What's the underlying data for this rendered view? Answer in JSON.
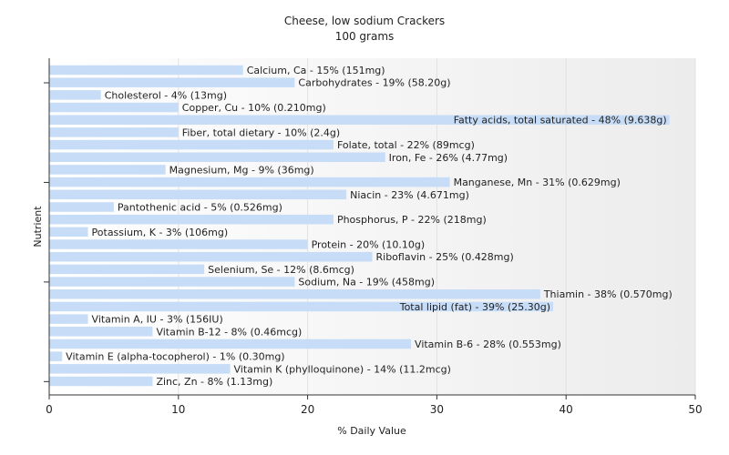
{
  "chart_data": {
    "type": "bar",
    "orientation": "horizontal",
    "title": "Cheese, low sodium Crackers",
    "subtitle": "100 grams",
    "xlabel": "% Daily Value",
    "ylabel": "Nutrient",
    "xlim": [
      0,
      50
    ],
    "xticks": [
      "0",
      "10",
      "20",
      "30",
      "40",
      "50"
    ],
    "grid": true,
    "bar_color": "#c6dcf7",
    "bars": [
      {
        "value": 15,
        "label": "Calcium, Ca - 15% (151mg)"
      },
      {
        "value": 19,
        "label": "Carbohydrates - 19% (58.20g)"
      },
      {
        "value": 4,
        "label": "Cholesterol - 4% (13mg)"
      },
      {
        "value": 10,
        "label": "Copper, Cu - 10% (0.210mg)"
      },
      {
        "value": 48,
        "label": "Fatty acids, total saturated - 48% (9.638g)"
      },
      {
        "value": 10,
        "label": "Fiber, total dietary - 10% (2.4g)"
      },
      {
        "value": 22,
        "label": "Folate, total - 22% (89mcg)"
      },
      {
        "value": 26,
        "label": "Iron, Fe - 26% (4.77mg)"
      },
      {
        "value": 9,
        "label": "Magnesium, Mg - 9% (36mg)"
      },
      {
        "value": 31,
        "label": "Manganese, Mn - 31% (0.629mg)"
      },
      {
        "value": 23,
        "label": "Niacin - 23% (4.671mg)"
      },
      {
        "value": 5,
        "label": "Pantothenic acid - 5% (0.526mg)"
      },
      {
        "value": 22,
        "label": "Phosphorus, P - 22% (218mg)"
      },
      {
        "value": 3,
        "label": "Potassium, K - 3% (106mg)"
      },
      {
        "value": 20,
        "label": "Protein - 20% (10.10g)"
      },
      {
        "value": 25,
        "label": "Riboflavin - 25% (0.428mg)"
      },
      {
        "value": 12,
        "label": "Selenium, Se - 12% (8.6mcg)"
      },
      {
        "value": 19,
        "label": "Sodium, Na - 19% (458mg)"
      },
      {
        "value": 38,
        "label": "Thiamin - 38% (0.570mg)"
      },
      {
        "value": 39,
        "label": "Total lipid (fat) - 39% (25.30g)"
      },
      {
        "value": 3,
        "label": "Vitamin A, IU - 3% (156IU)"
      },
      {
        "value": 8,
        "label": "Vitamin B-12 - 8% (0.46mcg)"
      },
      {
        "value": 28,
        "label": "Vitamin B-6 - 28% (0.553mg)"
      },
      {
        "value": 1,
        "label": "Vitamin E (alpha-tocopherol) - 1% (0.30mg)"
      },
      {
        "value": 14,
        "label": "Vitamin K (phylloquinone) - 14% (11.2mcg)"
      },
      {
        "value": 8,
        "label": "Zinc, Zn - 8% (1.13mg)"
      }
    ]
  }
}
